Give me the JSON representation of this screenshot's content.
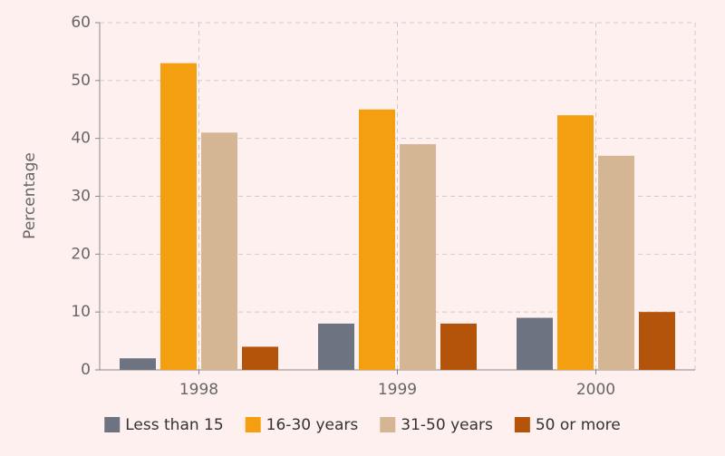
{
  "chart_data": {
    "type": "bar",
    "y_label": "Percentage",
    "categories": [
      "1998",
      "1999",
      "2000"
    ],
    "series": [
      {
        "name": "Less than 15",
        "color": "#6e7382",
        "values": [
          2,
          8,
          9
        ]
      },
      {
        "name": "16-30 years",
        "color": "#f49f0f",
        "values": [
          53,
          45,
          44
        ]
      },
      {
        "name": "31-50 years",
        "color": "#d4b594",
        "values": [
          41,
          39,
          37
        ]
      },
      {
        "name": "50 or more",
        "color": "#b4530a",
        "values": [
          4,
          8,
          10
        ]
      }
    ],
    "ylim": [
      0,
      60
    ],
    "yticks": [
      0,
      10,
      20,
      30,
      40,
      50,
      60
    ],
    "grid": true
  }
}
